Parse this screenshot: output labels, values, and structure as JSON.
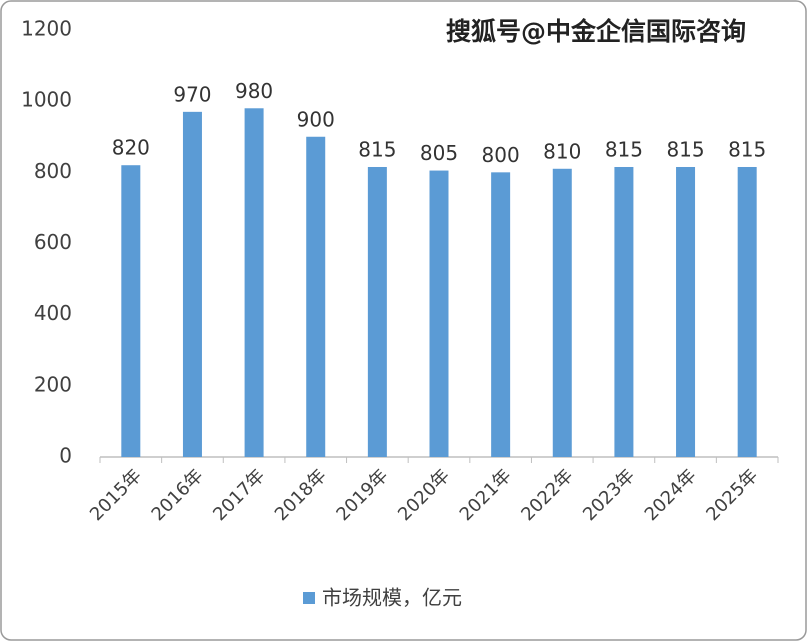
{
  "chart_data": {
    "type": "bar",
    "watermark": "搜狐号@中金企信国际咨询",
    "categories": [
      "2015年",
      "2016年",
      "2017年",
      "2018年",
      "2019年",
      "2020年",
      "2021年",
      "2022年",
      "2023年",
      "2024年",
      "2025年"
    ],
    "series": [
      {
        "name": "市场规模，亿元",
        "color": "#5b9bd5",
        "values": [
          820,
          970,
          980,
          900,
          815,
          805,
          800,
          810,
          815,
          815,
          815
        ]
      }
    ],
    "ylim": [
      0,
      1200
    ],
    "yticks": [
      0,
      200,
      400,
      600,
      800,
      1000,
      1200
    ],
    "data_labels": true,
    "legend": "bottom"
  }
}
